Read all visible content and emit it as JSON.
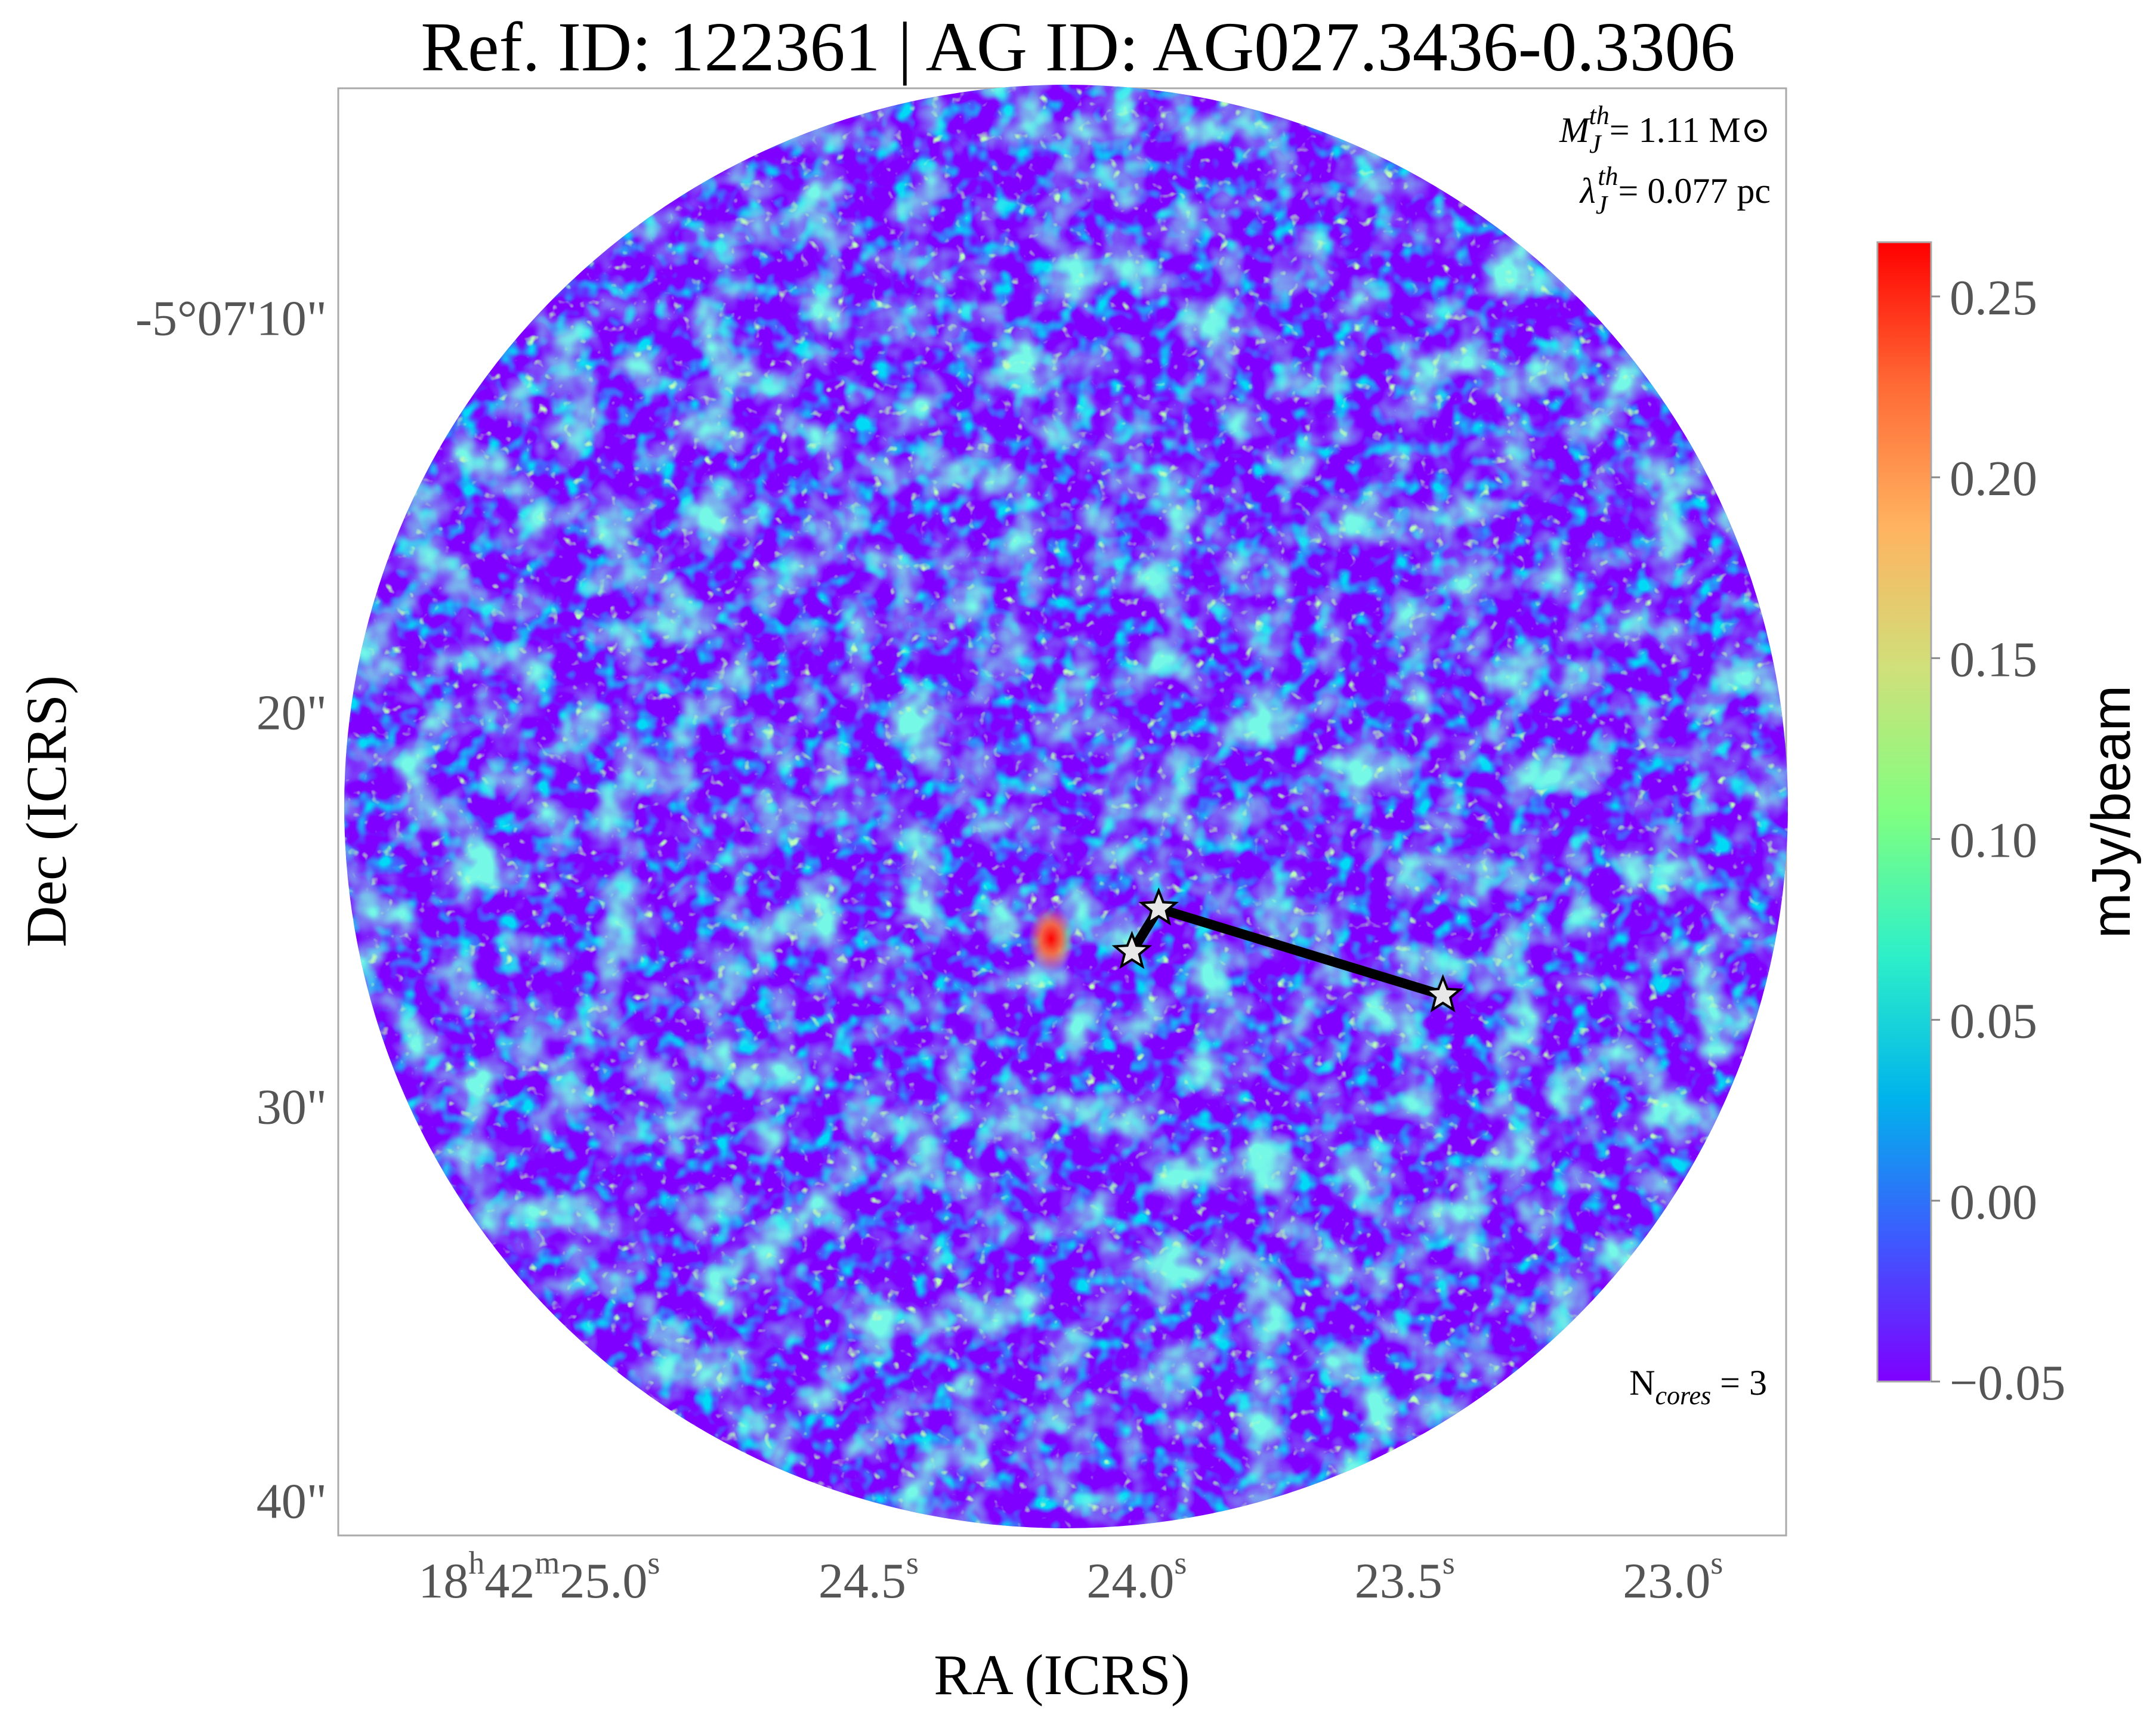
{
  "chart_data": {
    "type": "heatmap",
    "title": "Ref. ID: 122361 | AG ID: AG027.3436-0.3306",
    "xlabel": "RA (ICRS)",
    "ylabel": "Dec (ICRS)",
    "x_ticks": [
      {
        "value": 25.0,
        "prefix": "18",
        "sup1": "h",
        "mid": "42",
        "sup2": "m",
        "main": "25.0",
        "sup3": "s"
      },
      {
        "value": 24.5,
        "main": "24.5",
        "sup3": "s"
      },
      {
        "value": 24.0,
        "main": "24.0",
        "sup3": "s"
      },
      {
        "value": 23.5,
        "main": "23.5",
        "sup3": "s"
      },
      {
        "value": 23.0,
        "main": "23.0",
        "sup3": "s"
      }
    ],
    "y_ticks": [
      {
        "value": 10,
        "label": "-5°07'10\""
      },
      {
        "value": 20,
        "label": "20\""
      },
      {
        "value": 30,
        "label": "30\""
      },
      {
        "value": 40,
        "label": "40\""
      }
    ],
    "x_range_seconds": [
      25.5,
      22.8
    ],
    "y_range_arcsec": [
      4.2,
      40.9
    ],
    "colorbar": {
      "label": "mJy/beam",
      "range": [
        -0.05,
        0.265
      ],
      "ticks": [
        {
          "value": 0.25,
          "label": "0.25"
        },
        {
          "value": 0.2,
          "label": "0.20"
        },
        {
          "value": 0.15,
          "label": "0.15"
        },
        {
          "value": 0.1,
          "label": "0.10"
        },
        {
          "value": 0.05,
          "label": "0.05"
        },
        {
          "value": 0.0,
          "label": "0.00"
        },
        {
          "value": -0.05,
          "label": "−0.05"
        }
      ],
      "colormap": "rainbow",
      "stops": [
        "#7f00ff",
        "#3d5afe",
        "#00b4eb",
        "#2ef0c8",
        "#80ff80",
        "#cfe07a",
        "#ffb360",
        "#ff6a35",
        "#ff0000"
      ]
    },
    "cores": [
      {
        "ra_s": 24.02,
        "dec_arcsec": 26.1
      },
      {
        "ra_s": 23.97,
        "dec_arcsec": 25.0
      },
      {
        "ra_s": 23.44,
        "dec_arcsec": 27.2
      }
    ],
    "mst_edges": [
      [
        0,
        1
      ],
      [
        1,
        2
      ]
    ],
    "annotations": {
      "jeans_mass_symbol": "M",
      "jeans_mass_sub": "J",
      "jeans_mass_sup": "th",
      "jeans_mass_value": "= 1.11 M⊙",
      "jeans_length_symbol": "λ",
      "jeans_length_sub": "J",
      "jeans_length_sup": "th",
      "jeans_length_value": "= 0.077 pc",
      "ncores_main": "N",
      "ncores_sub": "cores",
      "ncores_value": " = 3"
    }
  }
}
